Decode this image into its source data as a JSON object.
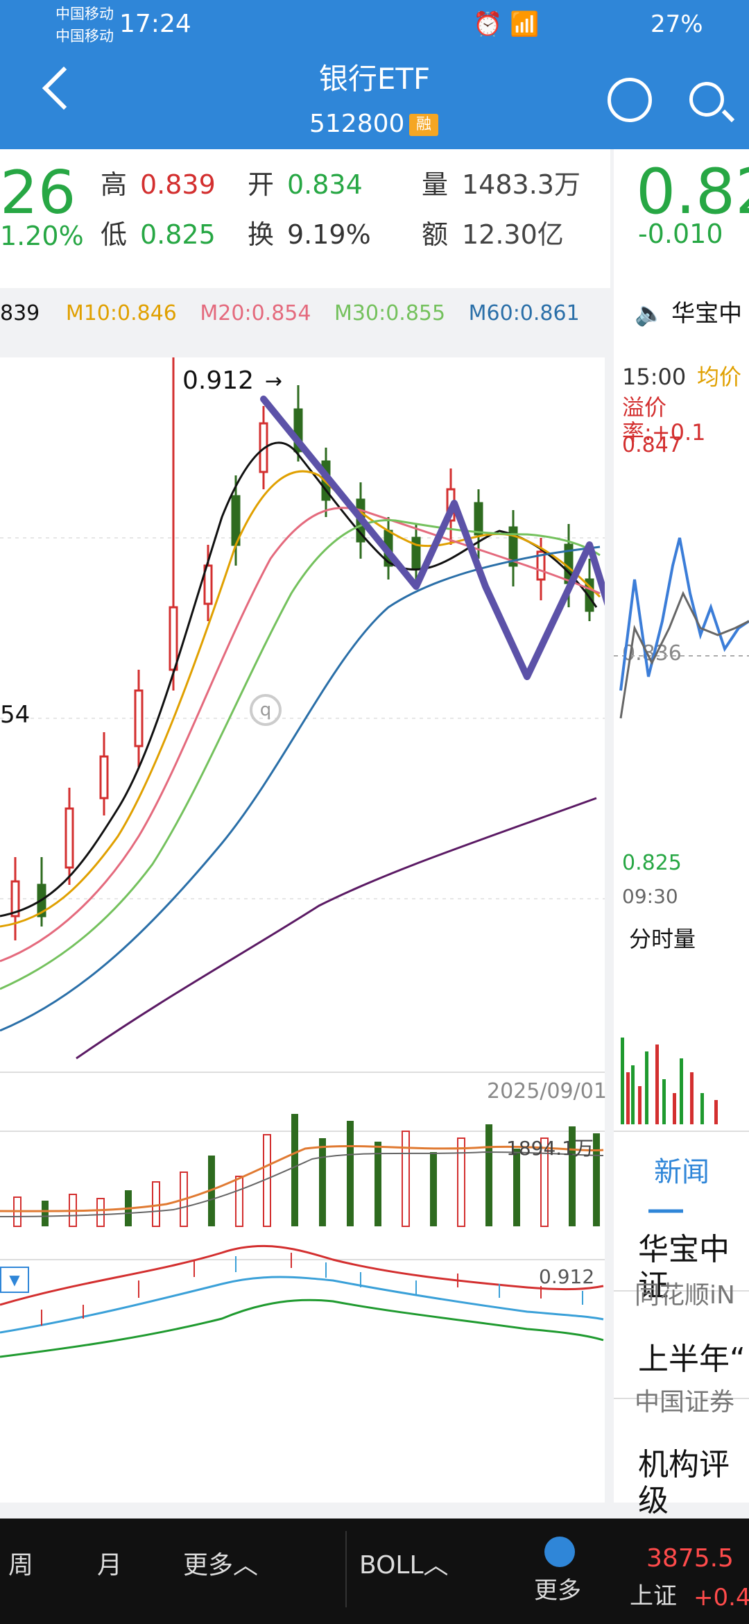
{
  "status_bar": {
    "carrier_1": "中国移动",
    "carrier_2": "中国移动",
    "time": "17:24",
    "battery": "27%"
  },
  "header": {
    "title": "银行ETF",
    "code": "512800",
    "margin_badge": "融"
  },
  "quote": {
    "price_partial": "26",
    "change_pct_partial": "1.20%",
    "high_label": "高",
    "high": "0.839",
    "low_label": "低",
    "low": "0.825",
    "open_label": "开",
    "open": "0.834",
    "turnover_label": "换",
    "turnover": "9.19%",
    "volume_label": "量",
    "volume": "1483.3万",
    "amount_label": "额",
    "amount": "12.30亿"
  },
  "ma_row": {
    "ma5_partial": "839",
    "ma10": "M10:0.846",
    "ma20": "M20:0.854",
    "ma30": "M30:0.855",
    "ma60": "M60:0.861"
  },
  "main_chart": {
    "high_marker": "0.912",
    "date": "2025/09/01",
    "left_partial_label": "54",
    "volume_max": "1894.1万",
    "boll_top": "0.912"
  },
  "colors": {
    "up": "#d32f2f",
    "down": "#2e6b1f",
    "ma5": "#111111",
    "ma10": "#e0a000",
    "ma20": "#e46a7d",
    "ma30": "#74c15d",
    "ma60": "#2a6fa8",
    "ma120": "#5b1a64",
    "annotation": "#5c52a8"
  },
  "right_panel": {
    "price": "0.82",
    "change": "-0.010",
    "speaker": "华宝中",
    "time_label": "15:00",
    "avg_label": "均价",
    "premium": "溢价率:+0.1",
    "high": "0.847",
    "mid": "0.836",
    "low": "0.825",
    "start_time": "09:30",
    "volume_label": "分时量",
    "news_tab": "新闻",
    "news_1_title": "华宝中证",
    "news_1_source": "同花顺iN",
    "news_2_title": "上半年“",
    "news_2_source": "中国证券",
    "news_3_title": "机构评级"
  },
  "bottom": {
    "week": "周",
    "month": "月",
    "more1": "更多",
    "boll": "BOLL",
    "more2": "更多",
    "index_value": "3875.5",
    "index_name": "上证",
    "index_change": "+0.4"
  }
}
